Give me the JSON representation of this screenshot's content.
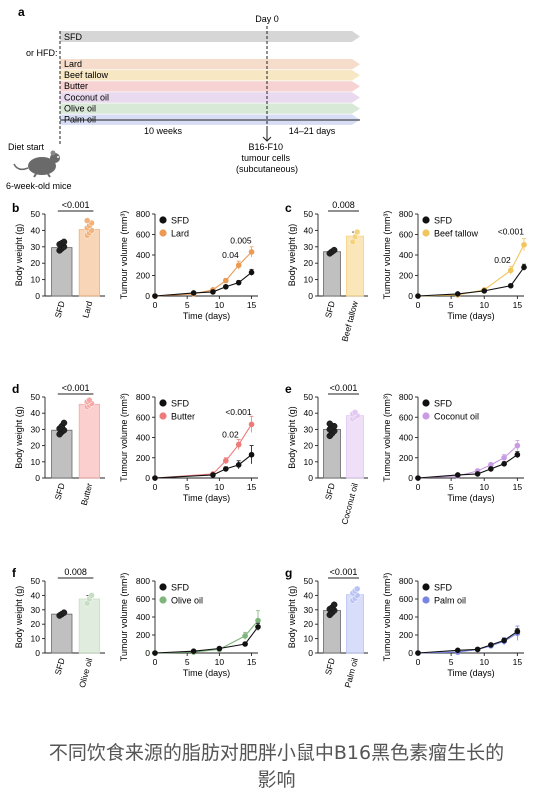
{
  "schematic": {
    "panel_label": "a",
    "day0_label": "Day 0",
    "control_bar": "SFD",
    "or_hfd_label": "or HFD:",
    "diets": [
      {
        "name": "Lard",
        "color": "#f6dccb"
      },
      {
        "name": "Beef tallow",
        "color": "#f7e7c3"
      },
      {
        "name": "Butter",
        "color": "#f6d2d2"
      },
      {
        "name": "Coconut oil",
        "color": "#e9daf0"
      },
      {
        "name": "Olive oil",
        "color": "#d9e9d7"
      },
      {
        "name": "Palm oil",
        "color": "#d7ddf4"
      }
    ],
    "control_color": "#d6d6d6",
    "weeks_label": "10 weeks",
    "days_label": "14–21 days",
    "injection_label": [
      "B16-F10",
      "tumour cells",
      "(subcutaneous)"
    ],
    "diet_start_label": "Diet start",
    "mice_label": "6-week-old mice"
  },
  "caption": [
    "不同饮食来源的脂肪对肥胖小鼠中B16黑色素瘤生长的",
    "影响"
  ],
  "chart_data": [
    {
      "panel": "b",
      "type": "bar",
      "categories": [
        "SFD",
        "Lard"
      ],
      "values": [
        29.5,
        40.5
      ],
      "errors": [
        1.5,
        2
      ],
      "ylabel": "Body weight (g)",
      "ylim": [
        0,
        50
      ],
      "yticks": [
        0,
        10,
        20,
        30,
        40,
        50
      ],
      "pvalue": "<0.001",
      "colors": [
        "#c0c0c0",
        "#f2b27a"
      ],
      "points": [
        [
          27.8,
          29,
          30,
          31.5,
          32.2,
          33
        ],
        [
          37,
          38.5,
          40,
          41.5,
          43,
          44.5,
          46
        ]
      ]
    },
    {
      "panel": "b",
      "type": "line",
      "x": [
        0,
        6,
        9,
        11,
        13,
        15
      ],
      "series": [
        {
          "name": "SFD",
          "values": [
            0,
            30,
            40,
            90,
            130,
            230
          ],
          "errors": [
            0,
            0,
            10,
            15,
            20,
            30
          ],
          "color": "#111111"
        },
        {
          "name": "Lard",
          "values": [
            0,
            20,
            60,
            150,
            300,
            430
          ],
          "errors": [
            0,
            0,
            10,
            20,
            40,
            50
          ],
          "color": "#eb9a54"
        }
      ],
      "xlabel": "Time (days)",
      "ylabel": "Tumour volume (mm³)",
      "xlim": [
        0,
        16
      ],
      "ylim": [
        0,
        800
      ],
      "xticks": [
        0,
        5,
        10,
        15
      ],
      "yticks": [
        0,
        200,
        400,
        600,
        800
      ],
      "annotations": [
        {
          "text": "0.04",
          "x": 13,
          "y": 370
        },
        {
          "text": "0.005",
          "x": 15,
          "y": 510
        }
      ]
    },
    {
      "panel": "c",
      "type": "bar",
      "categories": [
        "SFD",
        "Beef tallow"
      ],
      "values": [
        27,
        36.5
      ],
      "errors": [
        1,
        2.5
      ],
      "ylabel": "Body weight (g)",
      "ylim": [
        0,
        50
      ],
      "yticks": [
        0,
        10,
        20,
        30,
        40,
        50
      ],
      "pvalue": "0.008",
      "colors": [
        "#c0c0c0",
        "#f5d27e"
      ],
      "points": [
        [
          26,
          27,
          28
        ],
        [
          33,
          36,
          39
        ]
      ]
    },
    {
      "panel": "c",
      "type": "line",
      "x": [
        0,
        6,
        10,
        14,
        16
      ],
      "series": [
        {
          "name": "SFD",
          "values": [
            0,
            20,
            50,
            100,
            280
          ],
          "errors": [
            0,
            5,
            10,
            15,
            30
          ],
          "color": "#111111"
        },
        {
          "name": "Beef tallow",
          "values": [
            0,
            10,
            60,
            250,
            500
          ],
          "errors": [
            0,
            5,
            10,
            40,
            60
          ],
          "color": "#f1c55d"
        }
      ],
      "xlabel": "Time (days)",
      "ylabel": "Tumour volume (mm³)",
      "xlim": [
        0,
        16
      ],
      "ylim": [
        0,
        800
      ],
      "xticks": [
        0,
        5,
        10,
        15
      ],
      "yticks": [
        0,
        200,
        400,
        600,
        800
      ],
      "annotations": [
        {
          "text": "0.02",
          "x": 14,
          "y": 320
        },
        {
          "text": "<0.001",
          "x": 16,
          "y": 600
        }
      ]
    },
    {
      "panel": "d",
      "type": "bar",
      "categories": [
        "SFD",
        "Butter"
      ],
      "values": [
        29.5,
        45.5
      ],
      "errors": [
        1.8,
        1.2
      ],
      "ylabel": "Body weight (g)",
      "ylim": [
        0,
        50
      ],
      "yticks": [
        0,
        10,
        20,
        30,
        40,
        50
      ],
      "pvalue": "<0.001",
      "colors": [
        "#c0c0c0",
        "#f6a8a6"
      ],
      "points": [
        [
          27,
          28.5,
          29.5,
          30.5,
          32,
          34
        ],
        [
          44,
          45,
          46,
          47,
          48
        ]
      ]
    },
    {
      "panel": "d",
      "type": "line",
      "x": [
        0,
        9,
        11,
        13,
        15
      ],
      "series": [
        {
          "name": "SFD",
          "values": [
            0,
            30,
            90,
            130,
            230
          ],
          "errors": [
            0,
            10,
            20,
            40,
            90
          ],
          "color": "#111111"
        },
        {
          "name": "Butter",
          "values": [
            0,
            40,
            170,
            330,
            530
          ],
          "errors": [
            0,
            10,
            30,
            50,
            80
          ],
          "color": "#ec7b79"
        }
      ],
      "xlabel": "Time (days)",
      "ylabel": "Tumour volume (mm³)",
      "xlim": [
        0,
        16
      ],
      "ylim": [
        0,
        800
      ],
      "xticks": [
        0,
        5,
        10,
        15
      ],
      "yticks": [
        0,
        200,
        400,
        600,
        800
      ],
      "annotations": [
        {
          "text": "0.02",
          "x": 13,
          "y": 400
        },
        {
          "text": "<0.001",
          "x": 15,
          "y": 620
        }
      ]
    },
    {
      "panel": "e",
      "type": "bar",
      "categories": [
        "SFD",
        "Coconut oil"
      ],
      "values": [
        30,
        38.5
      ],
      "errors": [
        1.5,
        1.2
      ],
      "ylabel": "Body weight (g)",
      "ylim": [
        0,
        50
      ],
      "yticks": [
        0,
        10,
        20,
        30,
        40,
        50
      ],
      "pvalue": "<0.001",
      "colors": [
        "#c0c0c0",
        "#e1c7f2"
      ],
      "points": [
        [
          26,
          27.5,
          29,
          30,
          31,
          32,
          33.5
        ],
        [
          36.5,
          37.5,
          38.5,
          39.5,
          40.5
        ]
      ]
    },
    {
      "panel": "e",
      "type": "line",
      "x": [
        0,
        6,
        9,
        11,
        13,
        15
      ],
      "series": [
        {
          "name": "SFD",
          "values": [
            0,
            30,
            40,
            90,
            140,
            230
          ],
          "errors": [
            0,
            5,
            10,
            15,
            20,
            30
          ],
          "color": "#111111"
        },
        {
          "name": "Coconut oil",
          "values": [
            0,
            20,
            70,
            130,
            200,
            320
          ],
          "errors": [
            0,
            5,
            10,
            20,
            30,
            50
          ],
          "color": "#c99be4"
        }
      ],
      "xlabel": "Time (days)",
      "ylabel": "Tumour volume (mm³)",
      "xlim": [
        0,
        16
      ],
      "ylim": [
        0,
        800
      ],
      "xticks": [
        0,
        5,
        10,
        15
      ],
      "yticks": [
        0,
        200,
        400,
        600,
        800
      ],
      "annotations": []
    },
    {
      "panel": "f",
      "type": "bar",
      "categories": [
        "SFD",
        "Olive oil"
      ],
      "values": [
        27,
        37.5
      ],
      "errors": [
        1,
        2.5
      ],
      "ylabel": "Body weight (g)",
      "ylim": [
        0,
        50
      ],
      "yticks": [
        0,
        10,
        20,
        30,
        40,
        50
      ],
      "pvalue": "0.008",
      "colors": [
        "#c0c0c0",
        "#c6dfc3"
      ],
      "points": [
        [
          26,
          27,
          28
        ],
        [
          34.5,
          37.5,
          40
        ]
      ]
    },
    {
      "panel": "f",
      "type": "line",
      "x": [
        0,
        6,
        10,
        14,
        16
      ],
      "series": [
        {
          "name": "SFD",
          "values": [
            0,
            20,
            50,
            100,
            290
          ],
          "errors": [
            0,
            5,
            10,
            15,
            40
          ],
          "color": "#111111"
        },
        {
          "name": "Olive oil",
          "values": [
            0,
            10,
            40,
            190,
            360
          ],
          "errors": [
            0,
            5,
            10,
            40,
            110
          ],
          "color": "#7eb57a"
        }
      ],
      "xlabel": "Time (days)",
      "ylabel": "Tumour volume (mm³)",
      "xlim": [
        0,
        16
      ],
      "ylim": [
        0,
        800
      ],
      "xticks": [
        0,
        5,
        10,
        15
      ],
      "yticks": [
        0,
        200,
        400,
        600,
        800
      ],
      "annotations": []
    },
    {
      "panel": "g",
      "type": "bar",
      "categories": [
        "SFD",
        "Palm oil"
      ],
      "values": [
        29.5,
        40.5
      ],
      "errors": [
        1.2,
        2
      ],
      "ylabel": "Body weight (g)",
      "ylim": [
        0,
        50
      ],
      "yticks": [
        0,
        10,
        20,
        30,
        40,
        50
      ],
      "pvalue": "<0.001",
      "colors": [
        "#c0c0c0",
        "#b8c3f4"
      ],
      "points": [
        [
          26.5,
          28,
          29.5,
          30.5,
          31.5,
          33.5
        ],
        [
          36.5,
          38,
          40,
          41.5,
          43,
          44.5
        ]
      ]
    },
    {
      "panel": "g",
      "type": "line",
      "x": [
        0,
        6,
        9,
        11,
        13,
        15
      ],
      "series": [
        {
          "name": "SFD",
          "values": [
            0,
            30,
            40,
            90,
            140,
            240
          ],
          "errors": [
            0,
            5,
            10,
            15,
            20,
            30
          ],
          "color": "#111111"
        },
        {
          "name": "Palm oil",
          "values": [
            0,
            10,
            40,
            80,
            130,
            220
          ],
          "errors": [
            0,
            5,
            10,
            20,
            40,
            80
          ],
          "color": "#7884e4"
        }
      ],
      "xlabel": "Time (days)",
      "ylabel": "Tumour volume (mm³)",
      "xlim": [
        0,
        16
      ],
      "ylim": [
        0,
        800
      ],
      "xticks": [
        0,
        5,
        10,
        15
      ],
      "yticks": [
        0,
        200,
        400,
        600,
        800
      ],
      "annotations": []
    }
  ]
}
